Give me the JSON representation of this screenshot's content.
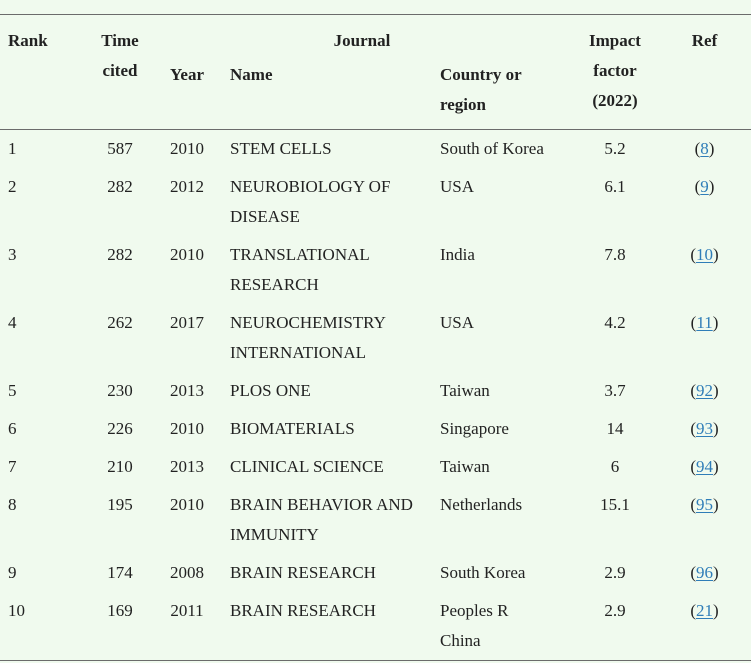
{
  "colors": {
    "background": "#f0faee",
    "text": "#222222",
    "rule": "#6b6b6b",
    "link": "#2f7db8"
  },
  "table": {
    "header": {
      "rank": "Rank",
      "time_cited": "Time cited",
      "journal": "Journal",
      "year": "Year",
      "name": "Name",
      "country": "Country or region",
      "impact_factor": "Impact factor (2022)",
      "ref": "Ref"
    },
    "ref_paren": {
      "open": "(",
      "close": ")"
    },
    "rows": [
      {
        "rank": "1",
        "time_cited": "587",
        "year": "2010",
        "name": "STEM CELLS",
        "country": "South of Korea",
        "impact": "5.2",
        "ref": "8"
      },
      {
        "rank": "2",
        "time_cited": "282",
        "year": "2012",
        "name": "NEUROBIOLOGY OF DISEASE",
        "country": "USA",
        "impact": "6.1",
        "ref": "9"
      },
      {
        "rank": "3",
        "time_cited": "282",
        "year": "2010",
        "name": "TRANSLATIONAL RESEARCH",
        "country": "India",
        "impact": "7.8",
        "ref": "10"
      },
      {
        "rank": "4",
        "time_cited": "262",
        "year": "2017",
        "name": "NEUROCHEMISTRY INTERNATIONAL",
        "country": "USA",
        "impact": "4.2",
        "ref": "11"
      },
      {
        "rank": "5",
        "time_cited": "230",
        "year": "2013",
        "name": "PLOS ONE",
        "country": "Taiwan",
        "impact": "3.7",
        "ref": "92"
      },
      {
        "rank": "6",
        "time_cited": "226",
        "year": "2010",
        "name": "BIOMATERIALS",
        "country": "Singapore",
        "impact": "14",
        "ref": "93"
      },
      {
        "rank": "7",
        "time_cited": "210",
        "year": "2013",
        "name": "CLINICAL SCIENCE",
        "country": "Taiwan",
        "impact": "6",
        "ref": "94"
      },
      {
        "rank": "8",
        "time_cited": "195",
        "year": "2010",
        "name": "BRAIN BEHAVIOR AND IMMUNITY",
        "country": "Netherlands",
        "impact": "15.1",
        "ref": "95"
      },
      {
        "rank": "9",
        "time_cited": "174",
        "year": "2008",
        "name": "BRAIN RESEARCH",
        "country": "South Korea",
        "impact": "2.9",
        "ref": "96"
      },
      {
        "rank": "10",
        "time_cited": "169",
        "year": "2011",
        "name": "BRAIN RESEARCH",
        "country": "Peoples R China",
        "impact": "2.9",
        "ref": "21"
      }
    ]
  }
}
